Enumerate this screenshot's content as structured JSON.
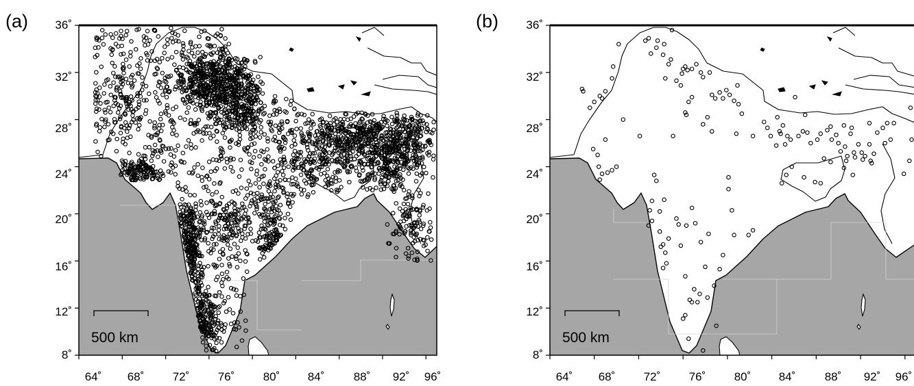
{
  "figure": {
    "x_ticks": [
      "64˚",
      "68˚",
      "72˚",
      "76˚",
      "80˚",
      "84˚",
      "88˚",
      "92˚",
      "96˚"
    ],
    "y_ticks": [
      "36˚",
      "32˚",
      "28˚",
      "24˚",
      "20˚",
      "16˚",
      "12˚",
      "8˚"
    ],
    "lon_range": [
      64,
      97
    ],
    "lat_range": [
      8,
      36
    ],
    "land_color": "#ffffff",
    "ocean_color": "#a6a6a6",
    "marker_style": "open-circle"
  },
  "panels": [
    {
      "id": "a",
      "label": "(a)",
      "scale_bar_label": "500 km",
      "station_density": "dense"
    },
    {
      "id": "b",
      "label": "(b)",
      "scale_bar_label": "500 km",
      "station_density": "sparse",
      "stations": [
        [
          67.0,
          30.4
        ],
        [
          66.9,
          30.6
        ],
        [
          67.6,
          29.0
        ],
        [
          68.0,
          29.5
        ],
        [
          68.5,
          30.0
        ],
        [
          68.7,
          29.8
        ],
        [
          69.0,
          30.4
        ],
        [
          69.6,
          31.5
        ],
        [
          69.7,
          32.5
        ],
        [
          70.2,
          34.4
        ],
        [
          67.9,
          25.5
        ],
        [
          68.3,
          25.0
        ],
        [
          68.4,
          24.0
        ],
        [
          68.5,
          22.9
        ],
        [
          68.7,
          23.4
        ],
        [
          69.2,
          23.5
        ],
        [
          69.6,
          23.7
        ],
        [
          70.0,
          24.0
        ],
        [
          69.0,
          26.3
        ],
        [
          70.6,
          28.0
        ],
        [
          72.1,
          26.6
        ],
        [
          72.6,
          34.7
        ],
        [
          72.9,
          34.9
        ],
        [
          73.1,
          33.6
        ],
        [
          73.6,
          34.1
        ],
        [
          73.7,
          34.7
        ],
        [
          74.2,
          33.5
        ],
        [
          74.3,
          34.4
        ],
        [
          74.4,
          31.5
        ],
        [
          74.7,
          32.7
        ],
        [
          74.9,
          33.1
        ],
        [
          75.0,
          35.6
        ],
        [
          75.4,
          31.3
        ],
        [
          75.8,
          30.9
        ],
        [
          75.9,
          31.9
        ],
        [
          76.0,
          32.3
        ],
        [
          76.2,
          32.5
        ],
        [
          76.4,
          32.2
        ],
        [
          76.8,
          32.3
        ],
        [
          77.2,
          32.7
        ],
        [
          77.6,
          32.0
        ],
        [
          77.8,
          31.6
        ],
        [
          78.4,
          32.0
        ],
        [
          78.6,
          30.1
        ],
        [
          78.9,
          29.8
        ],
        [
          79.3,
          30.3
        ],
        [
          79.6,
          29.8
        ],
        [
          79.9,
          30.5
        ],
        [
          80.2,
          30.1
        ],
        [
          80.6,
          29.6
        ],
        [
          80.9,
          30.9
        ],
        [
          81.0,
          29.3
        ],
        [
          81.3,
          28.5
        ],
        [
          78.2,
          28.2
        ],
        [
          77.8,
          27.6
        ],
        [
          78.6,
          27.0
        ],
        [
          75.1,
          26.6
        ],
        [
          76.3,
          28.4
        ],
        [
          76.2,
          28.6
        ],
        [
          76.5,
          29.5
        ],
        [
          76.8,
          29.9
        ],
        [
          73.4,
          23.3
        ],
        [
          73.6,
          22.8
        ],
        [
          73.2,
          21.1
        ],
        [
          74.3,
          21.2
        ],
        [
          73.9,
          20.2
        ],
        [
          73.0,
          20.3
        ],
        [
          73.2,
          19.4
        ],
        [
          72.9,
          19.0
        ],
        [
          73.9,
          18.5
        ],
        [
          74.7,
          17.9
        ],
        [
          74.2,
          17.4
        ],
        [
          74.0,
          17.2
        ],
        [
          74.4,
          16.7
        ],
        [
          74.5,
          15.8
        ],
        [
          74.2,
          15.4
        ],
        [
          75.4,
          19.6
        ],
        [
          75.6,
          19.1
        ],
        [
          75.8,
          17.3
        ],
        [
          76.2,
          14.7
        ],
        [
          77.0,
          13.6
        ],
        [
          76.6,
          12.7
        ],
        [
          76.8,
          12.5
        ],
        [
          77.3,
          12.5
        ],
        [
          76.0,
          11.1
        ],
        [
          76.2,
          11.4
        ],
        [
          77.5,
          13.2
        ],
        [
          78.2,
          12.9
        ],
        [
          78.8,
          13.9
        ],
        [
          79.3,
          15.3
        ],
        [
          78.0,
          15.5
        ],
        [
          77.6,
          17.6
        ],
        [
          77.1,
          19.2
        ],
        [
          76.8,
          20.5
        ],
        [
          76.3,
          19.0
        ],
        [
          78.3,
          18.3
        ],
        [
          79.6,
          16.5
        ],
        [
          79.0,
          10.5
        ],
        [
          77.8,
          8.4
        ],
        [
          76.5,
          9.4
        ],
        [
          80.1,
          23.1
        ],
        [
          80.1,
          22.1
        ],
        [
          80.4,
          20.3
        ],
        [
          80.6,
          18.2
        ],
        [
          81.9,
          18.2
        ],
        [
          82.3,
          18.6
        ],
        [
          80.8,
          26.8
        ],
        [
          82.3,
          26.6
        ],
        [
          83.6,
          27.3
        ],
        [
          83.9,
          26.6
        ],
        [
          84.4,
          25.8
        ],
        [
          84.7,
          27.0
        ],
        [
          85.0,
          27.5
        ],
        [
          84.8,
          26.8
        ],
        [
          85.4,
          26.6
        ],
        [
          85.2,
          25.9
        ],
        [
          85.7,
          26.3
        ],
        [
          86.4,
          26.6
        ],
        [
          86.8,
          27.0
        ],
        [
          87.2,
          26.9
        ],
        [
          87.5,
          26.0
        ],
        [
          88.1,
          26.3
        ],
        [
          88.4,
          26.8
        ],
        [
          89.0,
          27.1
        ],
        [
          89.4,
          26.3
        ],
        [
          89.8,
          26.7
        ],
        [
          90.0,
          26.0
        ],
        [
          90.2,
          25.3
        ],
        [
          90.6,
          25.7
        ],
        [
          90.8,
          24.9
        ],
        [
          91.1,
          26.8
        ],
        [
          91.4,
          25.2
        ],
        [
          91.5,
          24.8
        ],
        [
          91.8,
          25.9
        ],
        [
          92.1,
          25.2
        ],
        [
          92.4,
          24.9
        ],
        [
          92.8,
          25.9
        ],
        [
          92.9,
          24.5
        ],
        [
          93.2,
          25.1
        ],
        [
          93.5,
          26.9
        ],
        [
          94.0,
          27.3
        ],
        [
          94.4,
          27.7
        ],
        [
          95.0,
          27.7
        ],
        [
          94.7,
          26.3
        ],
        [
          94.2,
          26.0
        ],
        [
          95.9,
          23.4
        ],
        [
          96.5,
          29.0
        ],
        [
          96.6,
          26.3
        ],
        [
          96.4,
          24.5
        ],
        [
          93.0,
          24.3
        ],
        [
          92.2,
          24.6
        ],
        [
          91.3,
          23.3
        ],
        [
          90.7,
          24.5
        ],
        [
          90.5,
          23.9
        ],
        [
          89.3,
          24.4
        ],
        [
          88.7,
          24.7
        ],
        [
          88.4,
          22.6
        ],
        [
          87.9,
          22.7
        ],
        [
          86.9,
          23.1
        ],
        [
          85.8,
          24.0
        ],
        [
          85.3,
          23.3
        ],
        [
          84.9,
          22.6
        ],
        [
          84.5,
          28.2
        ],
        [
          83.3,
          27.8
        ],
        [
          86.1,
          29.9
        ],
        [
          87.0,
          28.4
        ],
        [
          89.3,
          27.4
        ],
        [
          90.5,
          27.5
        ],
        [
          91.2,
          27.3
        ],
        [
          92.8,
          27.7
        ]
      ]
    }
  ]
}
